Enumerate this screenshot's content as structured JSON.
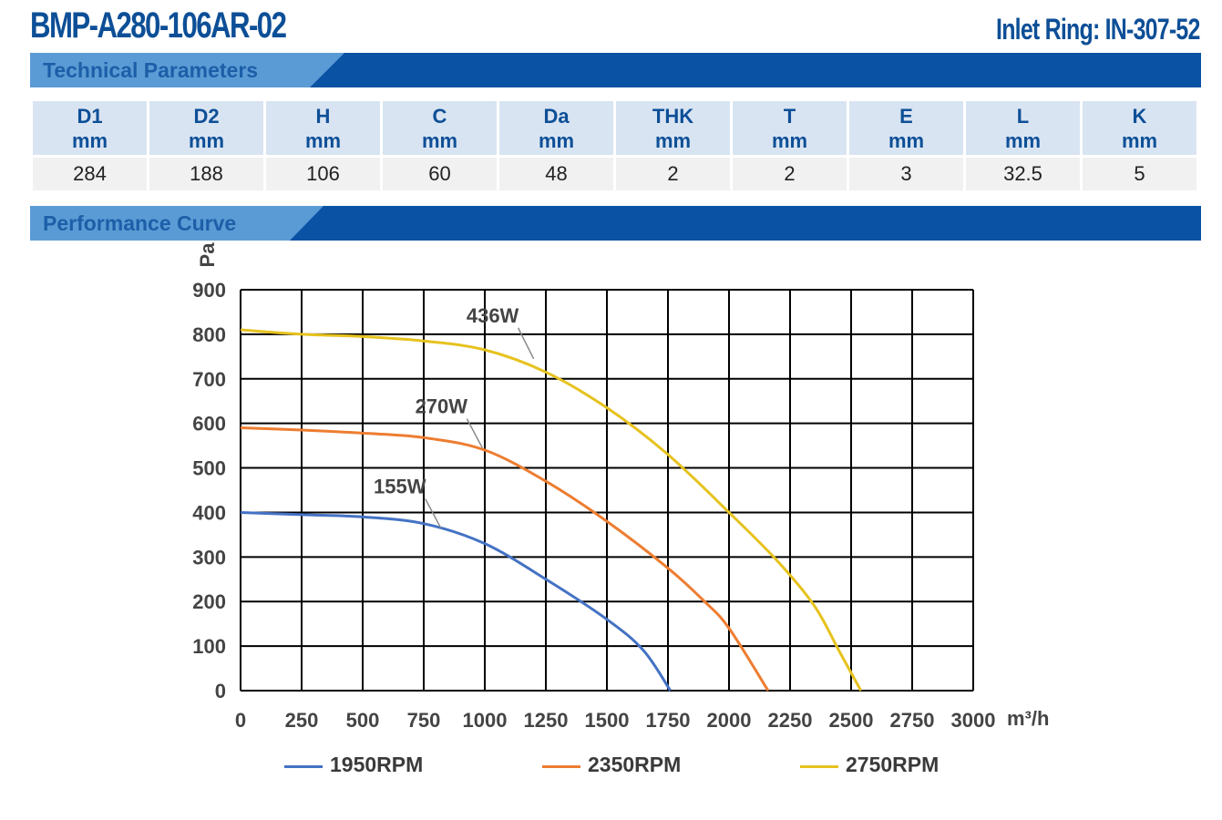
{
  "header": {
    "model": "BMP-A280-106AR-02",
    "inlet_ring": "Inlet Ring: IN-307-52"
  },
  "sections": {
    "technical": "Technical Parameters",
    "performance": "Performance Curve"
  },
  "parameters": [
    {
      "name": "D1",
      "unit": "mm",
      "value": "284"
    },
    {
      "name": "D2",
      "unit": "mm",
      "value": "188"
    },
    {
      "name": "H",
      "unit": "mm",
      "value": "106"
    },
    {
      "name": "C",
      "unit": "mm",
      "value": "60"
    },
    {
      "name": "Da",
      "unit": "mm",
      "value": "48"
    },
    {
      "name": "THK",
      "unit": "mm",
      "value": "2"
    },
    {
      "name": "T",
      "unit": "mm",
      "value": "2"
    },
    {
      "name": "E",
      "unit": "mm",
      "value": "3"
    },
    {
      "name": "L",
      "unit": "mm",
      "value": "32.5"
    },
    {
      "name": "K",
      "unit": "mm",
      "value": "5"
    }
  ],
  "colors": {
    "brand": "#0d4f97",
    "header_bar": "#0a52a4",
    "header_light": "#5b9bd5",
    "cell_header": "#d9e4f2",
    "series_1950": "#4472c4",
    "series_2350": "#ed7d31",
    "series_2750": "#e6c21e"
  },
  "chart_data": {
    "type": "line",
    "ylabel": "Pa",
    "xunit": "m³/h",
    "xlim": [
      0,
      3000
    ],
    "ylim": [
      0,
      900
    ],
    "xticks": [
      0,
      250,
      500,
      750,
      1000,
      1250,
      1500,
      1750,
      2000,
      2250,
      2500,
      2750,
      3000
    ],
    "yticks": [
      0,
      100,
      200,
      300,
      400,
      500,
      600,
      700,
      800,
      900
    ],
    "grid": true,
    "legend_position": "bottom",
    "series": [
      {
        "name": "1950RPM",
        "power_label": "155W",
        "power_at": [
          820,
          365
        ],
        "x": [
          0,
          250,
          500,
          750,
          1000,
          1250,
          1500,
          1650,
          1760
        ],
        "y": [
          400,
          395,
          390,
          375,
          330,
          250,
          160,
          90,
          0
        ]
      },
      {
        "name": "2350RPM",
        "power_label": "270W",
        "power_at": [
          990,
          545
        ],
        "x": [
          0,
          250,
          500,
          750,
          1000,
          1250,
          1500,
          1750,
          1900,
          2000,
          2160
        ],
        "y": [
          590,
          585,
          578,
          568,
          540,
          470,
          380,
          275,
          200,
          140,
          0
        ]
      },
      {
        "name": "2750RPM",
        "power_label": "436W",
        "power_at": [
          1200,
          745
        ],
        "x": [
          0,
          250,
          500,
          750,
          1000,
          1250,
          1500,
          1750,
          2000,
          2200,
          2350,
          2450,
          2540
        ],
        "y": [
          810,
          800,
          795,
          785,
          765,
          715,
          635,
          530,
          400,
          290,
          190,
          90,
          0
        ]
      }
    ]
  }
}
